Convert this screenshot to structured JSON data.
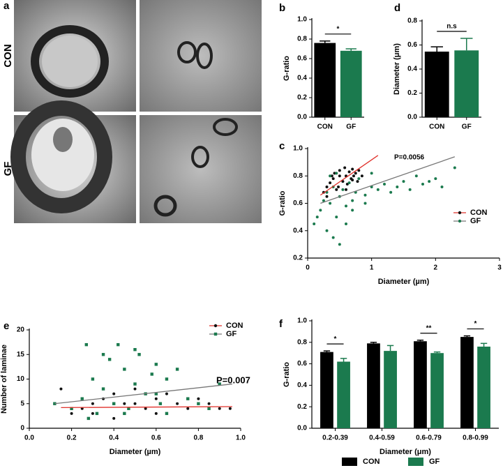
{
  "images": {
    "panel": "a",
    "rows": [
      "CON",
      "GF"
    ]
  },
  "chart_data": [
    {
      "type": "bar",
      "panel": "b",
      "ylabel": "G-ratio",
      "categories": [
        "CON",
        "GF"
      ],
      "values": [
        0.76,
        0.68
      ],
      "errors": [
        0.02,
        0.02
      ],
      "colors": [
        "#000000",
        "#1b7a4e"
      ],
      "ylim": [
        0,
        1
      ],
      "yticks": [
        {
          "value": 0,
          "label": "0.0"
        },
        0.2,
        0.4,
        0.6,
        0.8,
        {
          "value": 1,
          "label": "1.0"
        }
      ],
      "annotations": [
        {
          "text": "*",
          "from": 0,
          "to": 1
        }
      ]
    },
    {
      "type": "bar",
      "panel": "d",
      "ylabel": "Diameter (μm)",
      "categories": [
        "CON",
        "GF"
      ],
      "values": [
        0.545,
        0.555
      ],
      "errors": [
        0.04,
        0.1
      ],
      "colors": [
        "#000000",
        "#1b7a4e"
      ],
      "ylim": [
        0,
        0.8
      ],
      "yticks": [
        {
          "value": 0,
          "label": "0.0"
        },
        0.2,
        0.4,
        0.6,
        0.8
      ],
      "annotations": [
        {
          "text": "n.s",
          "from": 0,
          "to": 1
        }
      ]
    },
    {
      "type": "scatter",
      "panel": "c",
      "ylabel": "G-ratio",
      "xlabel": "Diameter (µm)",
      "note": "P=0.0056",
      "legend": "right",
      "xlim": [
        0,
        3
      ],
      "xticks": [
        0,
        1,
        2,
        3
      ],
      "ylim": [
        0.2,
        1
      ],
      "yticks": [
        0.2,
        0.4,
        0.6,
        0.8,
        {
          "value": 1,
          "label": "1.0"
        }
      ],
      "series": [
        {
          "name": "CON",
          "color": "#111111",
          "marker": "circle",
          "fit_color": "#e0302a",
          "x": [
            0.25,
            0.3,
            0.35,
            0.4,
            0.42,
            0.45,
            0.5,
            0.5,
            0.55,
            0.58,
            0.6,
            0.62,
            0.65,
            0.68,
            0.7,
            0.72,
            0.75,
            0.78,
            0.8,
            0.85,
            0.3,
            0.38,
            0.48,
            0.6,
            0.7
          ],
          "values": [
            0.68,
            0.72,
            0.75,
            0.78,
            0.82,
            0.7,
            0.8,
            0.84,
            0.76,
            0.86,
            0.8,
            0.74,
            0.83,
            0.78,
            0.85,
            0.8,
            0.82,
            0.76,
            0.84,
            0.8,
            0.65,
            0.8,
            0.72,
            0.7,
            0.77
          ],
          "fit": {
            "x": [
              0.2,
              1.1
            ],
            "values": [
              0.66,
              0.95
            ]
          }
        },
        {
          "name": "GF",
          "color": "#1b7a4e",
          "marker": "circle",
          "fit_color": "#777777",
          "x": [
            0.1,
            0.15,
            0.2,
            0.25,
            0.3,
            0.3,
            0.35,
            0.4,
            0.4,
            0.45,
            0.5,
            0.55,
            0.6,
            0.65,
            0.7,
            0.75,
            0.8,
            0.9,
            1.0,
            1.1,
            1.2,
            1.3,
            1.4,
            1.5,
            1.6,
            1.7,
            1.8,
            1.9,
            2.0,
            2.1,
            2.3,
            0.5,
            0.6,
            0.35,
            0.45,
            0.7,
            0.9,
            1.0
          ],
          "values": [
            0.45,
            0.5,
            0.55,
            0.62,
            0.4,
            0.68,
            0.6,
            0.35,
            0.72,
            0.5,
            0.65,
            0.7,
            0.58,
            0.75,
            0.62,
            0.68,
            0.78,
            0.66,
            0.72,
            0.7,
            0.74,
            0.68,
            0.72,
            0.76,
            0.7,
            0.8,
            0.74,
            0.76,
            0.78,
            0.72,
            0.86,
            0.3,
            0.45,
            0.8,
            0.82,
            0.55,
            0.6,
            0.82
          ],
          "fit": {
            "x": [
              0.2,
              2.3
            ],
            "values": [
              0.6,
              0.94
            ]
          }
        }
      ]
    },
    {
      "type": "scatter",
      "panel": "e",
      "ylabel": "Number of laminae",
      "xlabel": "Diameter (µm)",
      "note": "P=0.007",
      "legend": "top-right",
      "xlim": [
        0,
        1
      ],
      "xticks": [
        {
          "value": 0,
          "label": "0.0"
        },
        0.2,
        0.4,
        0.6,
        0.8,
        {
          "value": 1,
          "label": "1.0"
        }
      ],
      "ylim": [
        0,
        20
      ],
      "yticks": [
        0,
        5,
        10,
        15,
        20
      ],
      "series": [
        {
          "name": "CON",
          "color": "#111111",
          "marker": "circle",
          "fit_color": "#e0302a",
          "x": [
            0.15,
            0.2,
            0.25,
            0.3,
            0.35,
            0.4,
            0.45,
            0.5,
            0.55,
            0.6,
            0.65,
            0.7,
            0.75,
            0.8,
            0.85,
            0.9,
            0.95,
            0.3,
            0.4,
            0.5,
            0.6,
            0.45
          ],
          "values": [
            8,
            3,
            4,
            5,
            6,
            7,
            3,
            5,
            4,
            6,
            7,
            5,
            4,
            6,
            5,
            4,
            4,
            3,
            2,
            8,
            3,
            5
          ],
          "fit": {
            "x": [
              0.15,
              0.96
            ],
            "values": [
              4.2,
              4.4
            ]
          }
        },
        {
          "name": "GF",
          "color": "#1b7a4e",
          "marker": "square",
          "fit_color": "#777777",
          "x": [
            0.12,
            0.2,
            0.25,
            0.27,
            0.3,
            0.32,
            0.35,
            0.38,
            0.4,
            0.42,
            0.45,
            0.47,
            0.5,
            0.52,
            0.55,
            0.58,
            0.6,
            0.62,
            0.65,
            0.7,
            0.75,
            0.8,
            0.85,
            0.9,
            0.28,
            0.45,
            0.6,
            0.35,
            0.5,
            0.65
          ],
          "values": [
            5,
            4,
            6,
            17,
            10,
            3,
            8,
            14,
            5,
            17,
            12,
            4,
            9,
            15,
            7,
            11,
            13,
            5,
            3,
            12,
            6,
            5,
            4,
            9,
            2,
            3,
            7,
            15,
            16,
            10
          ],
          "fit": {
            "x": [
              0.12,
              0.96
            ],
            "values": [
              5.0,
              9.0
            ]
          }
        }
      ]
    },
    {
      "type": "bar",
      "panel": "f",
      "ylabel": "G-ratio",
      "xlabel": "Diameter (μm)",
      "legend": "bottom",
      "categories": [
        "0.2-0.39",
        "0.4-0.59",
        "0.6-0.79",
        "0.8-0.99"
      ],
      "ylim": [
        0,
        1
      ],
      "yticks": [
        {
          "value": 0,
          "label": "0.0"
        },
        0.2,
        0.4,
        0.6,
        0.8,
        {
          "value": 1,
          "label": "1.0"
        }
      ],
      "series": [
        {
          "name": "CON",
          "color": "#000000",
          "values": [
            0.71,
            0.79,
            0.81,
            0.85
          ],
          "errors": [
            0.01,
            0.01,
            0.01,
            0.01
          ]
        },
        {
          "name": "GF",
          "color": "#1b7a4e",
          "values": [
            0.62,
            0.72,
            0.7,
            0.76
          ],
          "errors": [
            0.03,
            0.05,
            0.01,
            0.03
          ]
        }
      ],
      "annotations": [
        {
          "text": "*",
          "group": 0
        },
        {
          "text": "**",
          "group": 2
        },
        {
          "text": "*",
          "group": 3
        }
      ]
    }
  ]
}
